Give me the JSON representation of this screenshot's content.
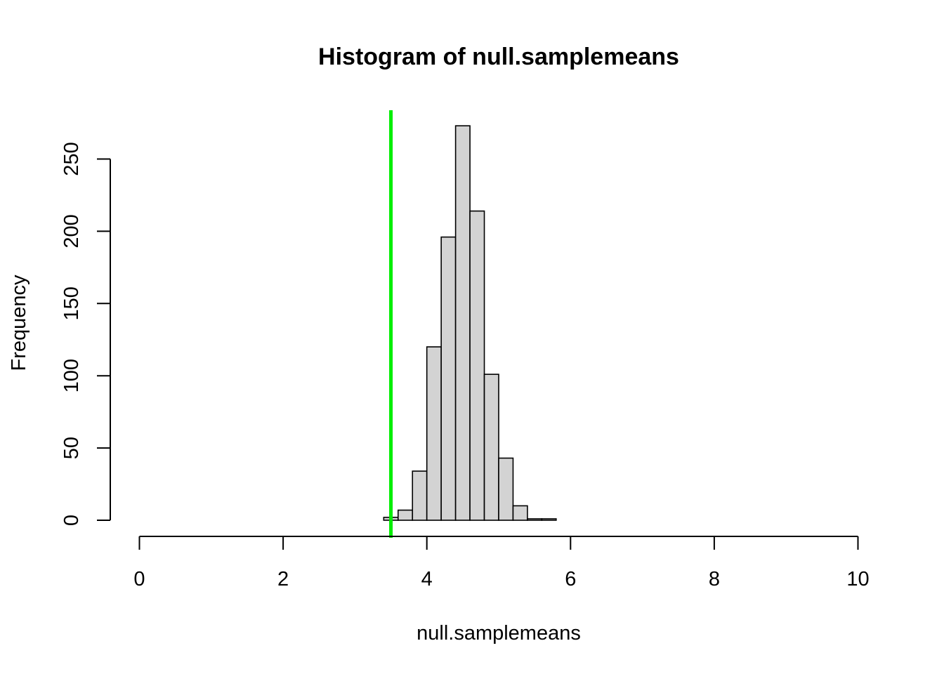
{
  "chart_data": {
    "type": "bar",
    "title": "Histogram of null.samplemeans",
    "xlabel": "null.samplemeans",
    "ylabel": "Frequency",
    "xlim": [
      0,
      10
    ],
    "ylim": [
      0,
      250
    ],
    "x_ticks": [
      "0",
      "2",
      "4",
      "6",
      "8",
      "10"
    ],
    "y_ticks": [
      "0",
      "50",
      "100",
      "150",
      "200",
      "250"
    ],
    "bin_width": 0.2,
    "bins": [
      {
        "start": 3.4,
        "end": 3.6,
        "count": 2
      },
      {
        "start": 3.6,
        "end": 3.8,
        "count": 7
      },
      {
        "start": 3.8,
        "end": 4.0,
        "count": 34
      },
      {
        "start": 4.0,
        "end": 4.2,
        "count": 120
      },
      {
        "start": 4.2,
        "end": 4.4,
        "count": 196
      },
      {
        "start": 4.4,
        "end": 4.6,
        "count": 273
      },
      {
        "start": 4.6,
        "end": 4.8,
        "count": 214
      },
      {
        "start": 4.8,
        "end": 5.0,
        "count": 101
      },
      {
        "start": 5.0,
        "end": 5.2,
        "count": 43
      },
      {
        "start": 5.2,
        "end": 5.4,
        "count": 10
      },
      {
        "start": 5.4,
        "end": 5.6,
        "count": 1
      },
      {
        "start": 5.6,
        "end": 5.8,
        "count": 1
      }
    ],
    "bar_fill": "#d3d3d3",
    "reference_line": {
      "x": 3.5,
      "color": "#00ee00"
    },
    "grid": false
  }
}
